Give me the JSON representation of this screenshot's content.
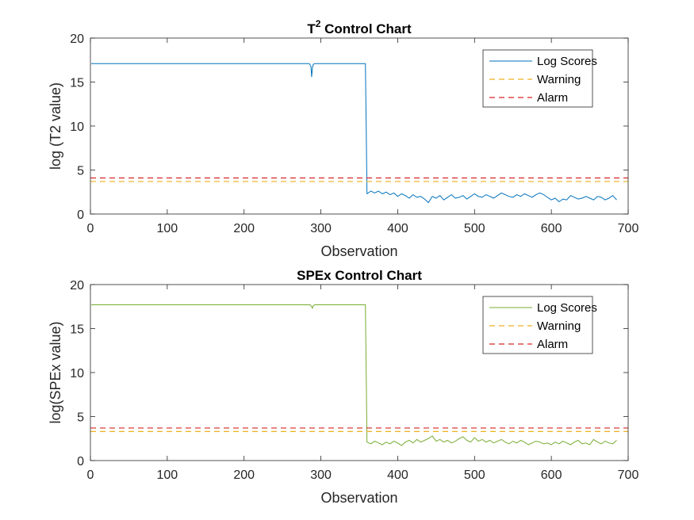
{
  "chart_data": [
    {
      "type": "line",
      "title": "T",
      "title_superscript": "2",
      "title_suffix": " Control Chart",
      "xlabel": "Observation",
      "ylabel": "log (T2 value)",
      "xlim": [
        0,
        700
      ],
      "ylim": [
        0,
        20
      ],
      "xticks": [
        0,
        100,
        200,
        300,
        400,
        500,
        600,
        700
      ],
      "yticks": [
        0,
        5,
        10,
        15,
        20
      ],
      "grid": false,
      "legend_position": "top-right",
      "series": [
        {
          "name": "Log Scores",
          "color": "#0072BD",
          "style": "solid",
          "x": [
            1,
            100,
            200,
            285,
            287,
            288,
            289,
            290,
            292,
            300,
            358,
            359,
            360,
            365,
            370,
            375,
            380,
            385,
            390,
            395,
            400,
            405,
            410,
            415,
            420,
            425,
            430,
            435,
            440,
            445,
            450,
            455,
            460,
            465,
            470,
            475,
            480,
            485,
            490,
            495,
            500,
            505,
            510,
            515,
            520,
            525,
            530,
            535,
            540,
            545,
            550,
            555,
            560,
            565,
            570,
            575,
            580,
            585,
            590,
            595,
            600,
            605,
            610,
            615,
            620,
            625,
            630,
            635,
            640,
            645,
            650,
            655,
            660,
            665,
            670,
            675,
            680,
            685
          ],
          "values": [
            17.1,
            17.1,
            17.1,
            17.1,
            16.8,
            15.6,
            16.6,
            17.0,
            17.1,
            17.1,
            17.1,
            10.0,
            2.3,
            2.6,
            2.4,
            2.6,
            2.3,
            2.5,
            2.2,
            2.4,
            2.0,
            2.3,
            2.1,
            1.8,
            2.2,
            1.9,
            2.0,
            1.7,
            1.3,
            2.0,
            1.8,
            2.1,
            1.6,
            1.9,
            2.2,
            1.8,
            1.9,
            2.1,
            1.7,
            2.0,
            2.3,
            2.0,
            1.9,
            2.2,
            2.0,
            1.8,
            2.1,
            2.4,
            2.2,
            2.0,
            1.9,
            2.2,
            2.0,
            2.3,
            2.1,
            1.9,
            2.2,
            2.4,
            2.2,
            1.9,
            1.6,
            1.8,
            1.4,
            1.7,
            1.6,
            2.1,
            1.9,
            1.7,
            1.8,
            2.0,
            1.8,
            1.6,
            2.0,
            1.9,
            1.6,
            1.8,
            2.1,
            1.6
          ]
        },
        {
          "name": "Warning",
          "color": "#EDB120",
          "style": "dashed",
          "level": 3.7
        },
        {
          "name": "Alarm",
          "color": "#D62728",
          "style": "dashed",
          "level": 4.1
        }
      ]
    },
    {
      "type": "line",
      "title": "SPEx Control Chart",
      "title_superscript": "",
      "title_suffix": "",
      "xlabel": "Observation",
      "ylabel": "log(SPEx value)",
      "xlim": [
        0,
        700
      ],
      "ylim": [
        0,
        20
      ],
      "xticks": [
        0,
        100,
        200,
        300,
        400,
        500,
        600,
        700
      ],
      "yticks": [
        0,
        5,
        10,
        15,
        20
      ],
      "grid": false,
      "legend_position": "top-right",
      "series": [
        {
          "name": "Log Scores",
          "color": "#77AC30",
          "style": "solid",
          "x": [
            1,
            100,
            200,
            286,
            288,
            289,
            290,
            292,
            300,
            358,
            359,
            360,
            365,
            370,
            375,
            380,
            385,
            390,
            395,
            400,
            405,
            410,
            415,
            420,
            425,
            430,
            435,
            440,
            445,
            450,
            455,
            460,
            465,
            470,
            475,
            480,
            485,
            490,
            495,
            500,
            505,
            510,
            515,
            520,
            525,
            530,
            535,
            540,
            545,
            550,
            555,
            560,
            565,
            570,
            575,
            580,
            585,
            590,
            595,
            600,
            605,
            610,
            615,
            620,
            625,
            630,
            635,
            640,
            645,
            650,
            655,
            660,
            665,
            670,
            675,
            680,
            685
          ],
          "values": [
            17.7,
            17.7,
            17.7,
            17.7,
            17.5,
            17.3,
            17.6,
            17.7,
            17.7,
            17.7,
            10.0,
            2.1,
            1.9,
            2.2,
            2.0,
            1.8,
            2.1,
            1.9,
            2.2,
            2.0,
            1.7,
            2.1,
            2.3,
            2.0,
            2.4,
            2.1,
            2.3,
            2.5,
            2.8,
            2.2,
            2.4,
            2.1,
            2.3,
            2.0,
            2.2,
            2.5,
            2.7,
            2.3,
            2.1,
            2.6,
            2.2,
            2.4,
            2.1,
            2.3,
            2.0,
            2.2,
            2.4,
            2.1,
            1.9,
            2.2,
            2.0,
            2.3,
            2.1,
            1.8,
            2.0,
            2.2,
            2.1,
            1.9,
            2.0,
            1.8,
            2.1,
            1.9,
            2.2,
            2.0,
            1.8,
            2.1,
            2.3,
            1.9,
            2.0,
            1.8,
            2.4,
            2.1,
            1.9,
            2.2,
            2.0,
            1.9,
            2.3
          ]
        },
        {
          "name": "Warning",
          "color": "#EDB120",
          "style": "dashed",
          "level": 3.3
        },
        {
          "name": "Alarm",
          "color": "#D62728",
          "style": "dashed",
          "level": 3.7
        }
      ]
    }
  ]
}
